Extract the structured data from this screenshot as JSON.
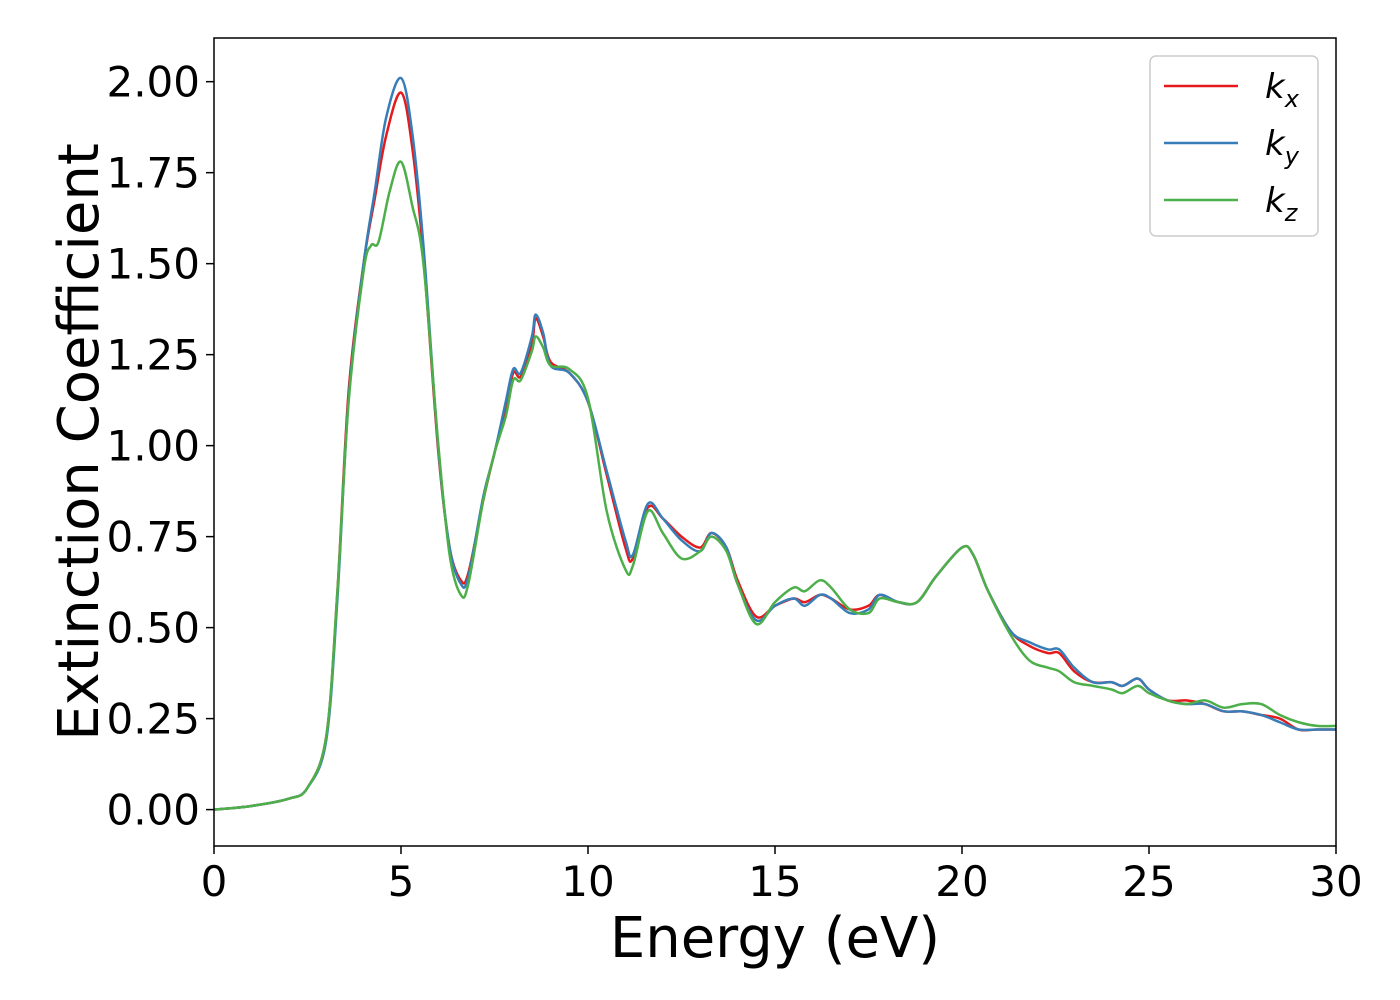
{
  "chart_data": {
    "type": "line",
    "title": "",
    "xlabel": "Energy (eV)",
    "ylabel": "Extinction Coefficient",
    "xlim": [
      0,
      30
    ],
    "ylim": [
      -0.1,
      2.12
    ],
    "xticks": [
      0,
      5,
      10,
      15,
      20,
      25,
      30
    ],
    "xtick_labels": [
      "0",
      "5",
      "10",
      "15",
      "20",
      "25",
      "30"
    ],
    "yticks": [
      0.0,
      0.25,
      0.5,
      0.75,
      1.0,
      1.25,
      1.5,
      1.75,
      2.0
    ],
    "ytick_labels": [
      "0.00",
      "0.25",
      "0.50",
      "0.75",
      "1.00",
      "1.25",
      "1.50",
      "1.75",
      "2.00"
    ],
    "grid": false,
    "legend_position": "top-right",
    "series": [
      {
        "name": "k",
        "sub": "x",
        "color": "#e41a1c",
        "points": [
          [
            0,
            0
          ],
          [
            1,
            0.01
          ],
          [
            2,
            0.03
          ],
          [
            2.5,
            0.06
          ],
          [
            3,
            0.2
          ],
          [
            3.3,
            0.6
          ],
          [
            3.6,
            1.15
          ],
          [
            4,
            1.5
          ],
          [
            4.3,
            1.68
          ],
          [
            4.6,
            1.85
          ],
          [
            5,
            1.97
          ],
          [
            5.3,
            1.82
          ],
          [
            5.6,
            1.52
          ],
          [
            6,
            0.98
          ],
          [
            6.3,
            0.72
          ],
          [
            6.6,
            0.63
          ],
          [
            6.8,
            0.65
          ],
          [
            7.2,
            0.85
          ],
          [
            7.5,
            0.98
          ],
          [
            7.8,
            1.1
          ],
          [
            8,
            1.2
          ],
          [
            8.2,
            1.19
          ],
          [
            8.5,
            1.28
          ],
          [
            8.6,
            1.35
          ],
          [
            8.8,
            1.3
          ],
          [
            9,
            1.23
          ],
          [
            9.5,
            1.2
          ],
          [
            10,
            1.12
          ],
          [
            10.5,
            0.92
          ],
          [
            11,
            0.72
          ],
          [
            11.2,
            0.69
          ],
          [
            11.6,
            0.83
          ],
          [
            12,
            0.8
          ],
          [
            12.5,
            0.75
          ],
          [
            13,
            0.72
          ],
          [
            13.3,
            0.76
          ],
          [
            13.7,
            0.72
          ],
          [
            14,
            0.63
          ],
          [
            14.5,
            0.53
          ],
          [
            15,
            0.56
          ],
          [
            15.5,
            0.58
          ],
          [
            15.8,
            0.57
          ],
          [
            16.2,
            0.59
          ],
          [
            16.5,
            0.58
          ],
          [
            17,
            0.55
          ],
          [
            17.5,
            0.56
          ],
          [
            17.8,
            0.59
          ],
          [
            18.3,
            0.57
          ],
          [
            18.8,
            0.57
          ],
          [
            19.3,
            0.64
          ],
          [
            20,
            0.72
          ],
          [
            20.3,
            0.7
          ],
          [
            20.7,
            0.6
          ],
          [
            21.3,
            0.49
          ],
          [
            21.8,
            0.45
          ],
          [
            22.3,
            0.43
          ],
          [
            22.6,
            0.43
          ],
          [
            23,
            0.38
          ],
          [
            23.5,
            0.35
          ],
          [
            24,
            0.35
          ],
          [
            24.3,
            0.34
          ],
          [
            24.7,
            0.36
          ],
          [
            25,
            0.33
          ],
          [
            25.5,
            0.3
          ],
          [
            26,
            0.3
          ],
          [
            26.5,
            0.29
          ],
          [
            27,
            0.27
          ],
          [
            27.5,
            0.27
          ],
          [
            28,
            0.26
          ],
          [
            28.5,
            0.25
          ],
          [
            29,
            0.22
          ],
          [
            29.5,
            0.22
          ],
          [
            30,
            0.22
          ]
        ]
      },
      {
        "name": "k",
        "sub": "y",
        "color": "#377eb8",
        "points": [
          [
            0,
            0
          ],
          [
            1,
            0.01
          ],
          [
            2,
            0.03
          ],
          [
            2.5,
            0.06
          ],
          [
            3,
            0.19
          ],
          [
            3.3,
            0.58
          ],
          [
            3.6,
            1.13
          ],
          [
            4,
            1.5
          ],
          [
            4.3,
            1.7
          ],
          [
            4.6,
            1.9
          ],
          [
            5,
            2.01
          ],
          [
            5.3,
            1.86
          ],
          [
            5.6,
            1.55
          ],
          [
            6,
            0.99
          ],
          [
            6.3,
            0.72
          ],
          [
            6.6,
            0.62
          ],
          [
            6.8,
            0.64
          ],
          [
            7.2,
            0.86
          ],
          [
            7.5,
            0.98
          ],
          [
            7.8,
            1.12
          ],
          [
            8,
            1.21
          ],
          [
            8.2,
            1.2
          ],
          [
            8.5,
            1.3
          ],
          [
            8.6,
            1.36
          ],
          [
            8.8,
            1.31
          ],
          [
            9,
            1.22
          ],
          [
            9.5,
            1.2
          ],
          [
            10,
            1.12
          ],
          [
            10.5,
            0.93
          ],
          [
            11,
            0.74
          ],
          [
            11.2,
            0.7
          ],
          [
            11.6,
            0.84
          ],
          [
            12,
            0.8
          ],
          [
            12.5,
            0.74
          ],
          [
            13,
            0.71
          ],
          [
            13.3,
            0.76
          ],
          [
            13.7,
            0.72
          ],
          [
            14,
            0.62
          ],
          [
            14.5,
            0.52
          ],
          [
            15,
            0.56
          ],
          [
            15.5,
            0.58
          ],
          [
            15.8,
            0.56
          ],
          [
            16.2,
            0.59
          ],
          [
            16.5,
            0.58
          ],
          [
            17,
            0.54
          ],
          [
            17.5,
            0.55
          ],
          [
            17.8,
            0.59
          ],
          [
            18.3,
            0.57
          ],
          [
            18.8,
            0.57
          ],
          [
            19.3,
            0.64
          ],
          [
            20,
            0.72
          ],
          [
            20.3,
            0.7
          ],
          [
            20.7,
            0.6
          ],
          [
            21.3,
            0.49
          ],
          [
            21.8,
            0.46
          ],
          [
            22.3,
            0.44
          ],
          [
            22.6,
            0.44
          ],
          [
            23,
            0.39
          ],
          [
            23.5,
            0.35
          ],
          [
            24,
            0.35
          ],
          [
            24.3,
            0.34
          ],
          [
            24.7,
            0.36
          ],
          [
            25,
            0.33
          ],
          [
            25.5,
            0.3
          ],
          [
            26,
            0.29
          ],
          [
            26.5,
            0.29
          ],
          [
            27,
            0.27
          ],
          [
            27.5,
            0.27
          ],
          [
            28,
            0.26
          ],
          [
            28.5,
            0.24
          ],
          [
            29,
            0.22
          ],
          [
            29.5,
            0.22
          ],
          [
            30,
            0.22
          ]
        ]
      },
      {
        "name": "k",
        "sub": "z",
        "color": "#4daf4a",
        "points": [
          [
            0,
            0
          ],
          [
            1,
            0.01
          ],
          [
            2,
            0.03
          ],
          [
            2.5,
            0.06
          ],
          [
            3,
            0.2
          ],
          [
            3.3,
            0.6
          ],
          [
            3.6,
            1.12
          ],
          [
            4,
            1.48
          ],
          [
            4.2,
            1.55
          ],
          [
            4.4,
            1.56
          ],
          [
            4.7,
            1.7
          ],
          [
            5,
            1.78
          ],
          [
            5.3,
            1.66
          ],
          [
            5.6,
            1.5
          ],
          [
            6,
            1.0
          ],
          [
            6.3,
            0.7
          ],
          [
            6.6,
            0.59
          ],
          [
            6.8,
            0.62
          ],
          [
            7.2,
            0.85
          ],
          [
            7.5,
            0.98
          ],
          [
            7.8,
            1.08
          ],
          [
            8,
            1.18
          ],
          [
            8.2,
            1.18
          ],
          [
            8.5,
            1.26
          ],
          [
            8.6,
            1.3
          ],
          [
            8.8,
            1.27
          ],
          [
            9,
            1.22
          ],
          [
            9.5,
            1.21
          ],
          [
            10,
            1.13
          ],
          [
            10.5,
            0.82
          ],
          [
            11,
            0.66
          ],
          [
            11.2,
            0.67
          ],
          [
            11.6,
            0.82
          ],
          [
            12,
            0.76
          ],
          [
            12.5,
            0.69
          ],
          [
            13,
            0.71
          ],
          [
            13.3,
            0.75
          ],
          [
            13.7,
            0.71
          ],
          [
            14,
            0.62
          ],
          [
            14.5,
            0.51
          ],
          [
            15,
            0.57
          ],
          [
            15.5,
            0.61
          ],
          [
            15.8,
            0.6
          ],
          [
            16.2,
            0.63
          ],
          [
            16.5,
            0.61
          ],
          [
            17,
            0.55
          ],
          [
            17.5,
            0.54
          ],
          [
            17.8,
            0.58
          ],
          [
            18.3,
            0.57
          ],
          [
            18.8,
            0.57
          ],
          [
            19.3,
            0.64
          ],
          [
            20,
            0.72
          ],
          [
            20.3,
            0.7
          ],
          [
            20.7,
            0.6
          ],
          [
            21.3,
            0.48
          ],
          [
            21.8,
            0.41
          ],
          [
            22.3,
            0.39
          ],
          [
            22.6,
            0.38
          ],
          [
            23,
            0.35
          ],
          [
            23.5,
            0.34
          ],
          [
            24,
            0.33
          ],
          [
            24.3,
            0.32
          ],
          [
            24.7,
            0.34
          ],
          [
            25,
            0.32
          ],
          [
            25.5,
            0.3
          ],
          [
            26,
            0.29
          ],
          [
            26.5,
            0.3
          ],
          [
            27,
            0.28
          ],
          [
            27.5,
            0.29
          ],
          [
            28,
            0.29
          ],
          [
            28.5,
            0.26
          ],
          [
            29,
            0.24
          ],
          [
            29.5,
            0.23
          ],
          [
            30,
            0.23
          ]
        ]
      }
    ]
  }
}
